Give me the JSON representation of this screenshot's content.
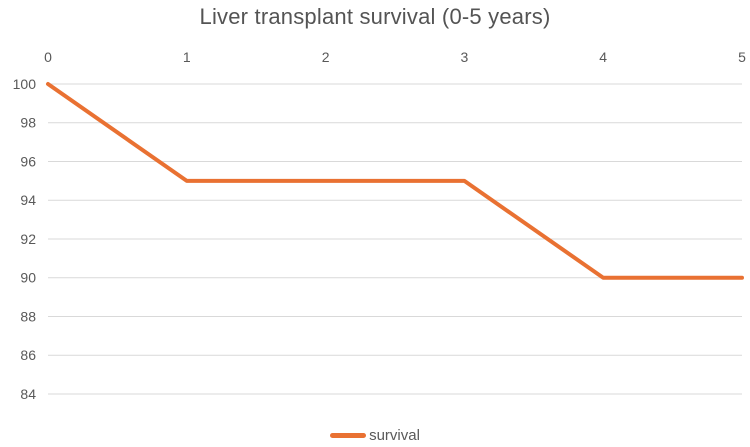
{
  "chart_data": {
    "type": "line",
    "title": "Liver transplant survival (0-5 years)",
    "xlabel": "",
    "ylabel": "",
    "x": [
      0,
      1,
      2,
      3,
      4,
      5
    ],
    "series": [
      {
        "name": "survival",
        "values": [
          100,
          95,
          95,
          95,
          90,
          90
        ]
      }
    ],
    "xticks": [
      0,
      1,
      2,
      3,
      4,
      5
    ],
    "yticks": [
      100,
      98,
      96,
      94,
      92,
      90,
      88,
      86,
      84
    ],
    "xlim": [
      0,
      5
    ],
    "ylim": [
      84,
      100
    ],
    "x_axis_position": "top",
    "grid": "horizontal-only",
    "legend_position": "bottom-center",
    "legend_entries": [
      "survival"
    ],
    "colors": {
      "series": "#E97132",
      "gridline": "#D9D9D9",
      "axis_text": "#595959",
      "title_text": "#545454",
      "background": "#FFFFFF"
    }
  }
}
